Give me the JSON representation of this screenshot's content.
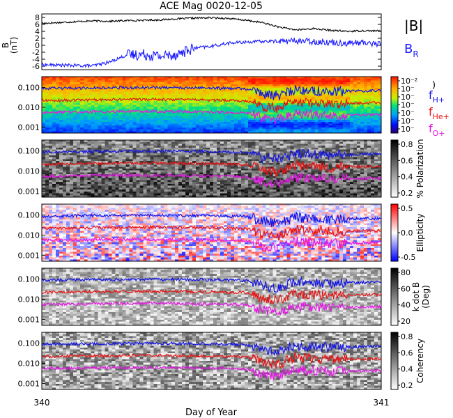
{
  "figure": {
    "title": "ACE Mag 0020-12-05",
    "xlabel": "Day of Year",
    "x_ticks": [
      "340",
      "341"
    ]
  },
  "colors": {
    "B_total": "#000000",
    "B_R": "#1a1aff",
    "f_H": "#1414e6",
    "f_He": "#e61414",
    "f_O": "#e614e6"
  },
  "chart_data": [
    {
      "type": "line",
      "title": "ACE Mag 0020-12-05",
      "ylabel": "B (nT)",
      "ylim": [
        -7,
        9
      ],
      "y_ticks": [
        "8",
        "6",
        "4",
        "2",
        "0",
        "-2",
        "-4",
        "-6"
      ],
      "x": [
        340.0,
        340.05,
        340.1,
        340.15,
        340.2,
        340.25,
        340.3,
        340.35,
        340.4,
        340.45,
        340.5,
        340.55,
        340.6,
        340.65,
        340.7,
        340.75,
        340.8,
        340.85,
        340.9,
        340.95,
        341.0
      ],
      "series": [
        {
          "name": "|B|",
          "values": [
            6.3,
            6.5,
            6.8,
            7.0,
            6.9,
            7.1,
            7.2,
            7.3,
            7.6,
            7.8,
            7.9,
            7.7,
            7.2,
            6.5,
            5.2,
            4.4,
            4.8,
            4.3,
            4.0,
            4.2,
            4.1
          ]
        },
        {
          "name": "B_R",
          "values": [
            -5.6,
            -5.7,
            -5.8,
            -5.9,
            -4.8,
            -2.8,
            -2.6,
            -3.1,
            -2.5,
            -0.8,
            -0.3,
            0.6,
            0.9,
            1.1,
            1.2,
            1.3,
            1.1,
            0.9,
            0.6,
            0.8,
            0.3
          ]
        }
      ]
    },
    {
      "type": "heatmap",
      "ylabel": "",
      "y_ticks": [
        "0.100",
        "0.010",
        "0.001"
      ],
      "ylim": [
        0.0005,
        0.35
      ],
      "yscale": "log",
      "colorbar_ticks": [
        "10⁻²",
        "10⁻",
        "10⁻",
        "10⁻",
        "10⁻",
        "10⁻",
        "10⁻"
      ],
      "colorbar_label": ")",
      "legend": [
        "fH+",
        "fHe+",
        "fO+"
      ],
      "x": [
        340.0,
        340.1,
        340.2,
        340.3,
        340.4,
        340.5,
        340.6,
        340.65,
        340.7,
        340.75,
        340.8,
        340.85,
        340.9,
        341.0
      ],
      "series": [
        {
          "name": "fH+",
          "values": [
            0.088,
            0.092,
            0.095,
            0.098,
            0.096,
            0.093,
            0.085,
            0.045,
            0.038,
            0.075,
            0.07,
            0.06,
            0.065,
            0.07
          ]
        },
        {
          "name": "fHe+",
          "values": [
            0.022,
            0.023,
            0.024,
            0.025,
            0.024,
            0.023,
            0.021,
            0.011,
            0.009,
            0.019,
            0.017,
            0.015,
            0.016,
            0.017
          ]
        },
        {
          "name": "fO+",
          "values": [
            0.0055,
            0.0057,
            0.006,
            0.0062,
            0.006,
            0.0058,
            0.0053,
            0.0028,
            0.0024,
            0.0047,
            0.0043,
            0.0038,
            0.004,
            0.0043
          ]
        }
      ]
    },
    {
      "type": "heatmap",
      "y_ticks": [
        "0.100",
        "0.010",
        "0.001"
      ],
      "yscale": "log",
      "colorbar_ticks": [
        "0.8",
        "0.6",
        "0.4",
        "0.2"
      ],
      "colorbar_label": "% Polarization"
    },
    {
      "type": "heatmap",
      "y_ticks": [
        "0.100",
        "0.010",
        "0.001"
      ],
      "yscale": "log",
      "colorbar_ticks": [
        "0.5",
        "0.0",
        "-0.5"
      ],
      "colorbar_label": "Ellipticity"
    },
    {
      "type": "heatmap",
      "y_ticks": [
        "0.100",
        "0.010",
        "0.001"
      ],
      "yscale": "log",
      "colorbar_ticks": [
        "80",
        "60",
        "40",
        "20"
      ],
      "colorbar_label": "k dot B (Deg)"
    },
    {
      "type": "heatmap",
      "y_ticks": [
        "0.100",
        "0.010",
        "0.001"
      ],
      "yscale": "log",
      "colorbar_ticks": [
        "0.8",
        "0.6",
        "0.4",
        "0.2"
      ],
      "colorbar_label": "Coherency"
    }
  ],
  "labels": {
    "B_axis_1": "B",
    "B_axis_2": "(nT)",
    "legend_B": "|B|",
    "legend_BR_main": "B",
    "legend_BR_sub": "R",
    "fH_main": "f",
    "fH_sub": "H+",
    "fHe_main": "f",
    "fHe_sub": "He+",
    "fO_main": "f",
    "fO_sub": "O+",
    "panel_side_mark": ")",
    "cbar3_line1": "k dot B",
    "cbar3_line2": "(Deg)"
  }
}
